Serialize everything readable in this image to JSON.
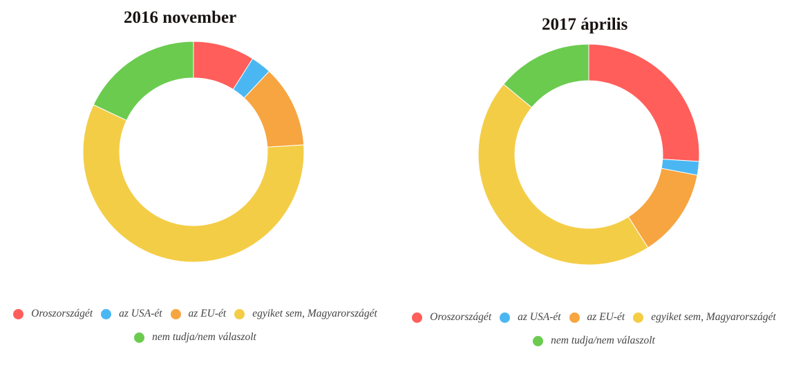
{
  "charts": [
    {
      "title": "2016 november",
      "legend": [
        "Oroszországét",
        "az USA-ét",
        "az EU-ét",
        "egyiket sem, Magyarországét",
        "nem tudja/nem válaszolt"
      ]
    },
    {
      "title": "2017 április",
      "legend": [
        "Oroszországét",
        "az USA-ét",
        "az EU-ét",
        "egyiket sem, Magyarországét",
        "nem tudja/nem válaszolt"
      ]
    }
  ],
  "colors": {
    "Oroszországét": "#ff5e5b",
    "az USA-ét": "#4bb7f2",
    "az EU-ét": "#f7a541",
    "egyiket sem, Magyarországét": "#f4cd47",
    "nem tudja/nem válaszolt": "#6bcb4f"
  },
  "chart_data": [
    {
      "type": "pie",
      "subtype": "donut",
      "title": "2016 november",
      "categories": [
        "Oroszországét",
        "az USA-ét",
        "az EU-ét",
        "egyiket sem, Magyarországét",
        "nem tudja/nem válaszolt"
      ],
      "values": [
        9,
        3,
        12,
        58,
        18
      ],
      "unit": "%",
      "colors": [
        "#ff5e5b",
        "#4bb7f2",
        "#f7a541",
        "#f4cd47",
        "#6bcb4f"
      ],
      "legend_position": "bottom"
    },
    {
      "type": "pie",
      "subtype": "donut",
      "title": "2017 április",
      "categories": [
        "Oroszországét",
        "az USA-ét",
        "az EU-ét",
        "egyiket sem, Magyarországét",
        "nem tudja/nem válaszolt"
      ],
      "values": [
        26,
        2,
        13,
        45,
        14
      ],
      "unit": "%",
      "colors": [
        "#ff5e5b",
        "#4bb7f2",
        "#f7a541",
        "#f4cd47",
        "#6bcb4f"
      ],
      "legend_position": "bottom"
    }
  ]
}
